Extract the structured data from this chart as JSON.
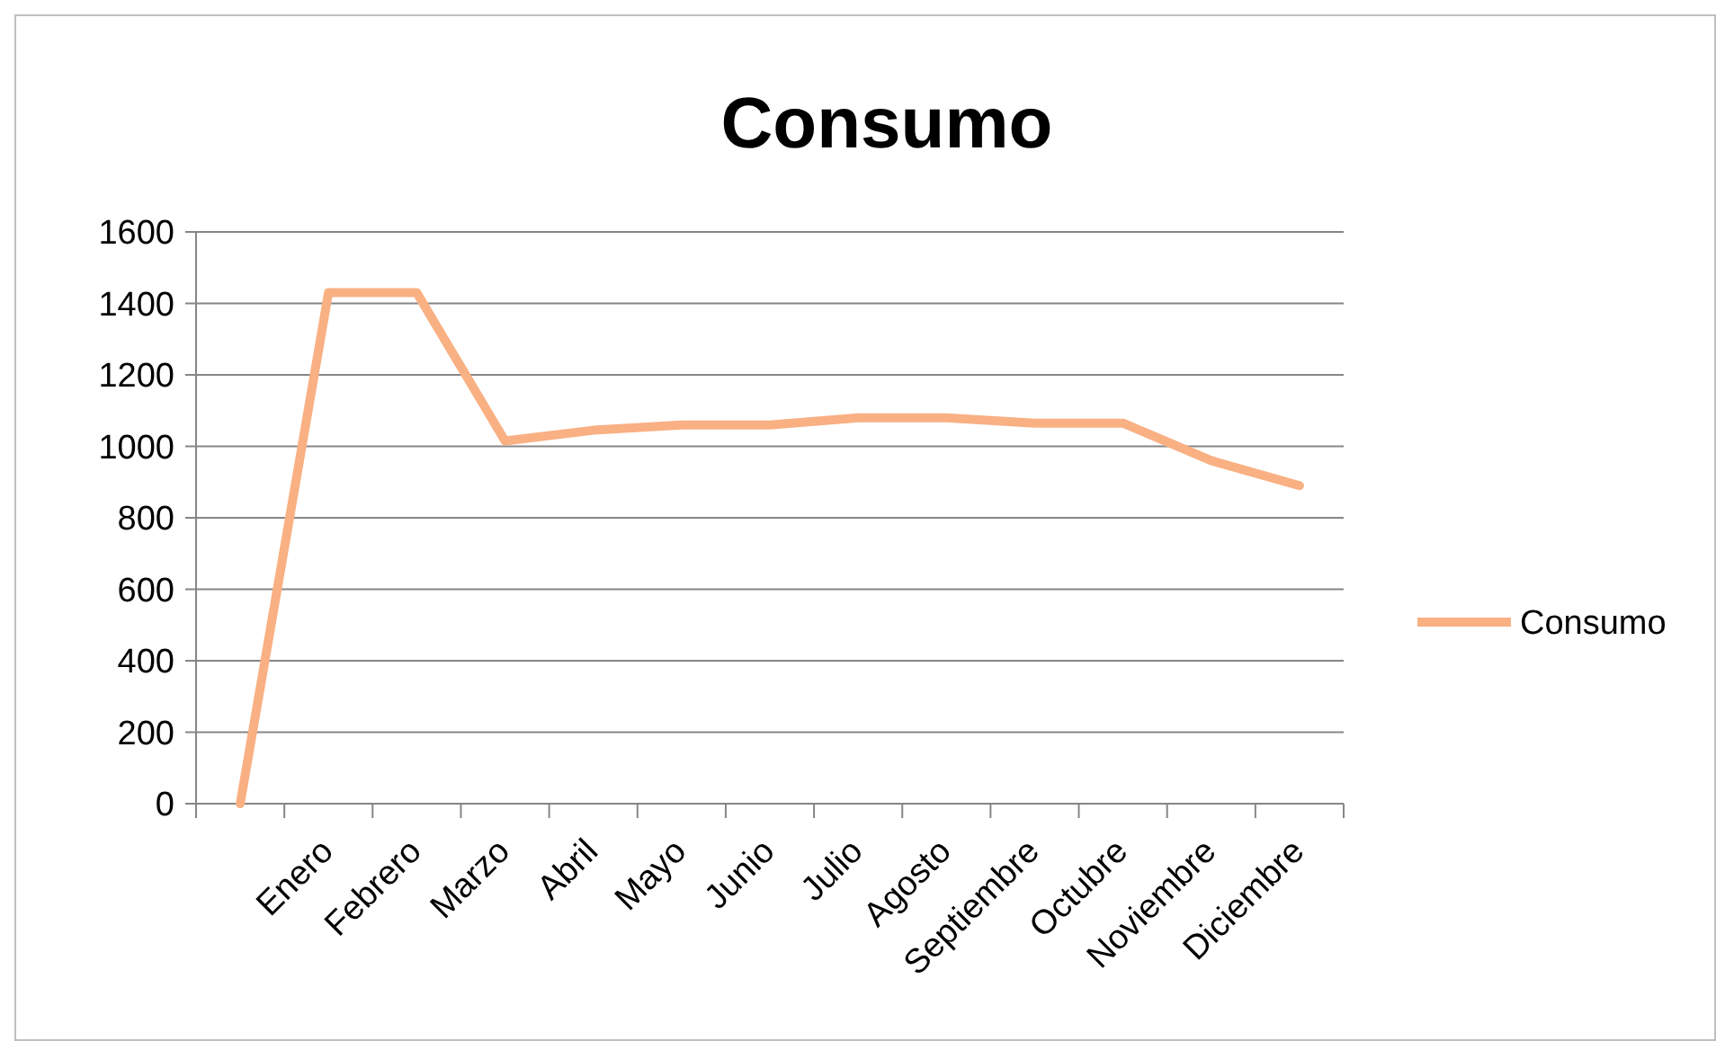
{
  "chart_data": {
    "type": "line",
    "title": "Consumo",
    "categories": [
      null,
      "Enero",
      "Febrero",
      "Marzo",
      "Abril",
      "Mayo",
      "Junio",
      "Julio",
      "Agosto",
      "Septiembre",
      "Octubre",
      "Noviembre",
      "Diciembre"
    ],
    "series": [
      {
        "name": "Consumo",
        "color": "#f9b083",
        "values": [
          0,
          1430,
          1430,
          1015,
          1045,
          1060,
          1060,
          1080,
          1080,
          1065,
          1065,
          960,
          890
        ]
      }
    ],
    "ylim": [
      0,
      1600
    ],
    "yticks": [
      0,
      200,
      400,
      600,
      800,
      1000,
      1200,
      1400,
      1600
    ],
    "grid": "y",
    "legend": "right",
    "marker": "none",
    "line_style": "solid"
  }
}
